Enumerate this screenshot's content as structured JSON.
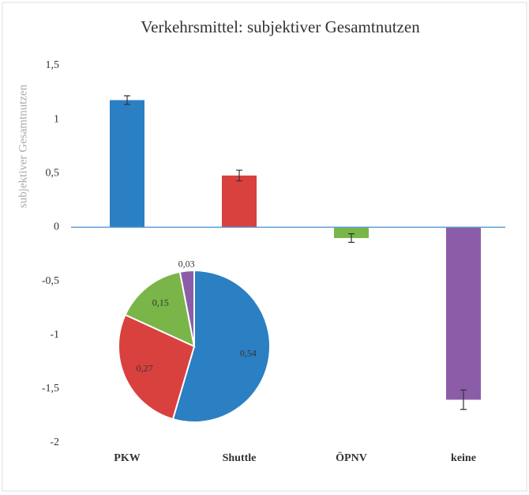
{
  "chart_data": [
    {
      "type": "bar",
      "title": "Verkehrsmittel: subjektiver Gesamtnutzen",
      "y_label": "subjektiver Gesamtnutzen",
      "categories": [
        "PKW",
        "Shuttle",
        "ÖPNV",
        "keine"
      ],
      "values": [
        1.18,
        0.48,
        -0.1,
        -1.6
      ],
      "errors": [
        0.04,
        0.05,
        0.04,
        0.09
      ],
      "colors": [
        "#2b7fc3",
        "#d9413e",
        "#79b548",
        "#8b5da8"
      ],
      "ylim": [
        -2,
        1.5
      ],
      "yticks": [
        {
          "value": -2,
          "label": "-2"
        },
        {
          "value": -1.5,
          "label": "-1,5"
        },
        -1,
        {
          "value": -0.5,
          "label": "-0,5"
        },
        0,
        {
          "value": 0.5,
          "label": "0,5"
        },
        1,
        {
          "value": 1.5,
          "label": "1,5"
        }
      ]
    },
    {
      "type": "pie",
      "values": [
        0.54,
        0.27,
        0.15,
        0.03
      ],
      "value_labels": [
        "0,54",
        "0,27",
        "0,15",
        "0,03"
      ],
      "colors": [
        "#2b7fc3",
        "#d9413e",
        "#79b548",
        "#8b5da8"
      ]
    }
  ]
}
